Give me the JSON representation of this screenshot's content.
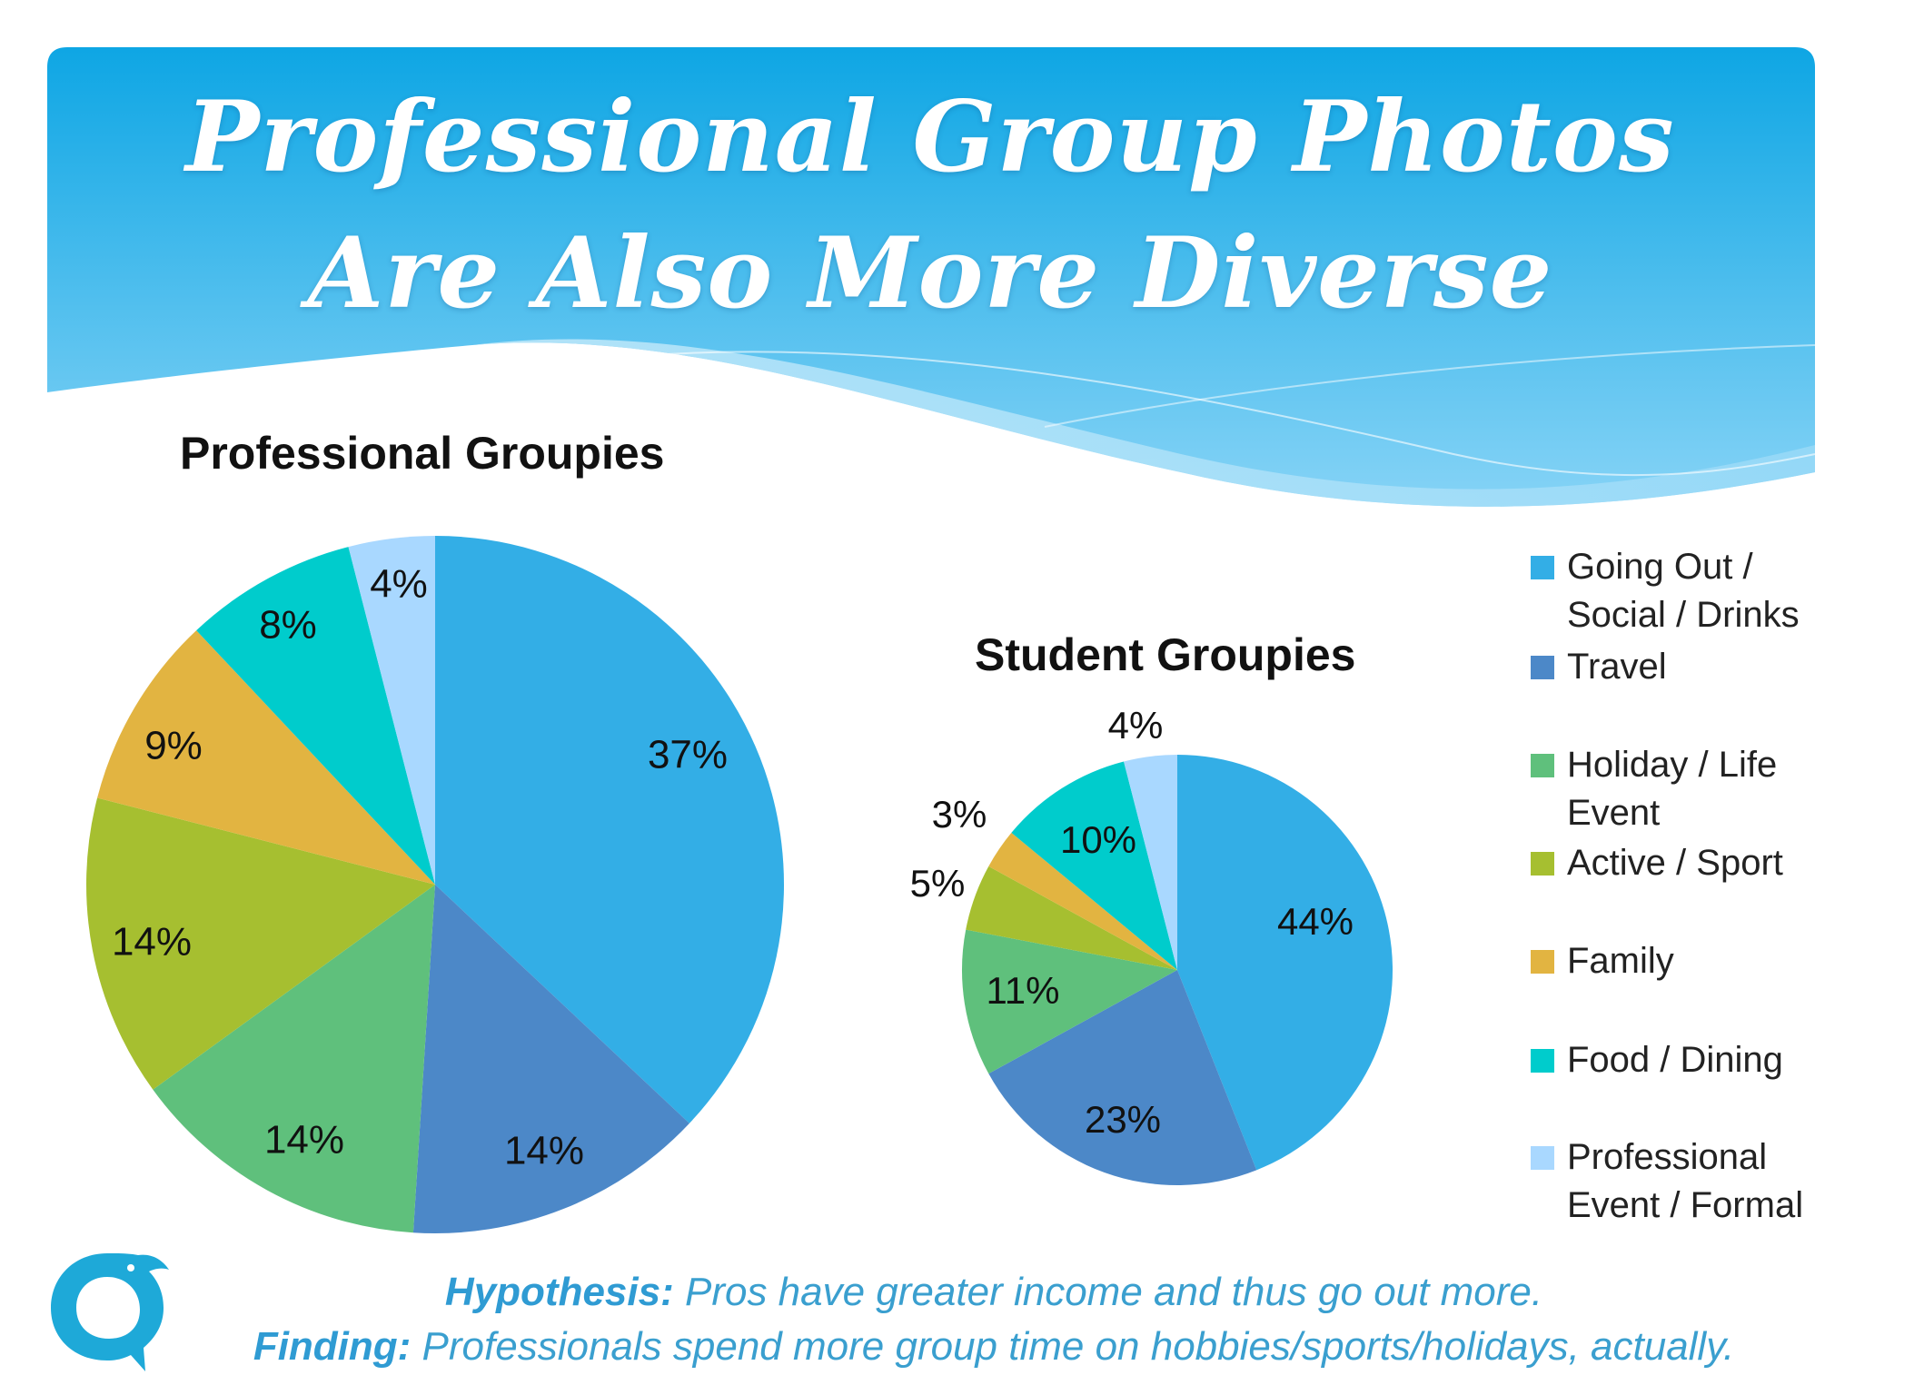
{
  "title": {
    "line1": "Professional Group Photos",
    "line2": "Are Also More Diverse"
  },
  "colors": {
    "banner_top": "#11a8e6",
    "banner_bottom": "#7fd0f5",
    "going_out": "#33aee6",
    "travel": "#4c88c8",
    "holiday": "#5fc07c",
    "active": "#a6bf30",
    "family": "#e2b441",
    "food": "#00cccc",
    "professional": "#a9d8ff",
    "caption": "#3a9fcf"
  },
  "legend": [
    {
      "label": "Going Out / Social / Drinks",
      "color": "#33aee6"
    },
    {
      "label": "Travel",
      "color": "#4c88c8"
    },
    {
      "label": "Holiday / Life Event",
      "color": "#5fc07c"
    },
    {
      "label": "Active / Sport",
      "color": "#a6bf30"
    },
    {
      "label": "Family",
      "color": "#e2b441"
    },
    {
      "label": "Food / Dining",
      "color": "#00cccc"
    },
    {
      "label": "Professional Event / Formal",
      "color": "#a9d8ff"
    }
  ],
  "chart_data": [
    {
      "type": "pie",
      "title": "Professional Groupies",
      "categories": [
        "Going Out / Social / Drinks",
        "Travel",
        "Holiday / Life Event",
        "Active / Sport",
        "Family",
        "Food / Dining",
        "Professional Event / Formal"
      ],
      "values": [
        37,
        14,
        14,
        14,
        9,
        8,
        4
      ],
      "labels": [
        "37%",
        "14%",
        "14%",
        "14%",
        "9%",
        "8%",
        "4%"
      ]
    },
    {
      "type": "pie",
      "title": "Student Groupies",
      "categories": [
        "Going Out / Social / Drinks",
        "Travel",
        "Holiday / Life Event",
        "Active / Sport",
        "Family",
        "Food / Dining",
        "Professional Event / Formal"
      ],
      "values": [
        44,
        23,
        11,
        5,
        3,
        10,
        4
      ],
      "labels": [
        "44%",
        "23%",
        "11%",
        "5%",
        "3%",
        "10%",
        "4%"
      ]
    }
  ],
  "caption": {
    "hypothesis_key": "Hypothesis:",
    "hypothesis_text": " Pros have greater income and thus go out more.",
    "finding_key": "Finding:",
    "finding_text": " Professionals spend more group time on hobbies/sports/holidays, actually."
  }
}
